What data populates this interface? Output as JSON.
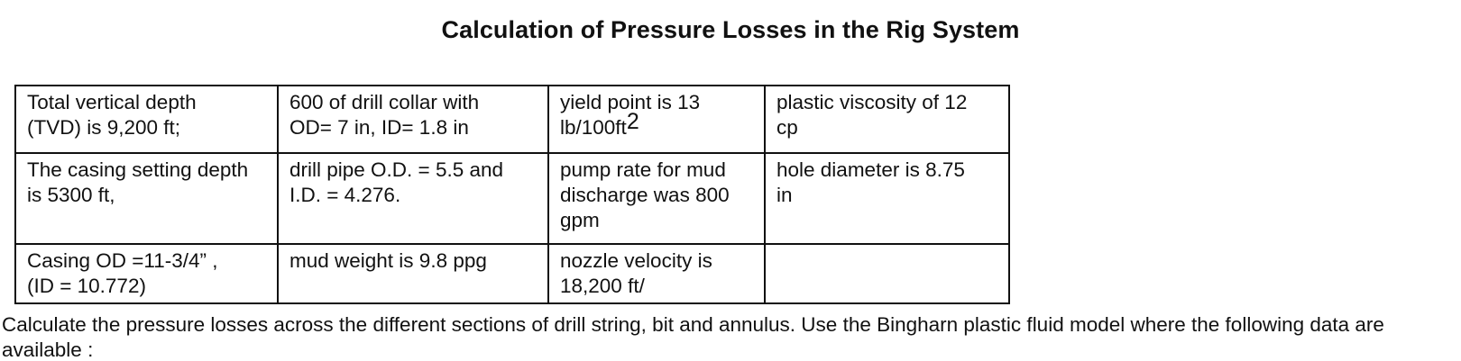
{
  "document": {
    "title": "Calculation of Pressure Losses in the Rig System",
    "table": {
      "rows": [
        [
          "Total vertical depth\n(TVD) is 9,200 ft;",
          "600 of drill collar with\nOD= 7 in, ID= 1.8 in",
          "yield point is 13\nlb/100ft",
          "plastic viscosity of 12\ncp"
        ],
        [
          "The casing setting depth\nis 5300 ft,",
          "drill pipe O.D. = 5.5 and\nI.D. = 4.276.",
          "pump rate for mud\ndischarge was 800\ngpm",
          "hole diameter is 8.75\nin"
        ],
        [
          "Casing  OD =11-3/4” ,\n(ID = 10.772)",
          "mud weight is 9.8 ppg",
          "nozzle  velocity is\n18,200 ft/",
          ""
        ]
      ],
      "yield_point_exponent": "2"
    },
    "instruction": " Calculate the pressure losses across the different sections of drill string, bit and annulus. Use the  Bingharn plastic fluid model where the following data are available :"
  }
}
